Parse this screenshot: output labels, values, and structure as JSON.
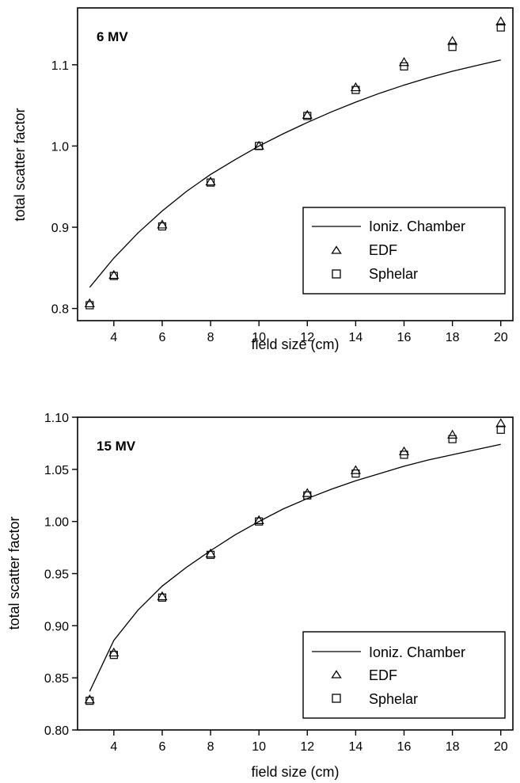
{
  "chart_data": [
    {
      "type": "scatter",
      "panel_label": "6 MV",
      "xlabel": "field size (cm)",
      "ylabel": "total scatter factor",
      "xlim": [
        2.5,
        20.5
      ],
      "ylim": [
        0.785,
        1.17
      ],
      "xticks": [
        4,
        6,
        8,
        10,
        12,
        14,
        16,
        18,
        20
      ],
      "xtick_labels": [
        "4",
        "6",
        "8",
        "10",
        "12",
        "14",
        "16",
        "18",
        "20"
      ],
      "yticks": [
        0.8,
        0.9,
        1.0,
        1.1
      ],
      "ytick_labels": [
        "0.8",
        "0.9",
        "1.0",
        "1.1"
      ],
      "grid": false,
      "legend_position": "lower-right",
      "series": [
        {
          "name": "Ioniz. Chamber",
          "marker": "line",
          "x": [
            3,
            4,
            5,
            6,
            7,
            8,
            9,
            10,
            11,
            12,
            13,
            14,
            15,
            16,
            17,
            18,
            19,
            20
          ],
          "y": [
            0.826,
            0.862,
            0.893,
            0.92,
            0.944,
            0.965,
            0.983,
            1.0,
            1.015,
            1.029,
            1.042,
            1.054,
            1.065,
            1.075,
            1.084,
            1.092,
            1.099,
            1.106
          ]
        },
        {
          "name": "EDF",
          "marker": "triangle",
          "x": [
            3,
            4,
            6,
            8,
            10,
            12,
            14,
            16,
            18,
            20
          ],
          "y": [
            0.806,
            0.841,
            0.903,
            0.956,
            1.0,
            1.038,
            1.072,
            1.103,
            1.129,
            1.153
          ]
        },
        {
          "name": "Sphelar",
          "marker": "square",
          "x": [
            3,
            4,
            6,
            8,
            10,
            12,
            14,
            16,
            18,
            20
          ],
          "y": [
            0.804,
            0.84,
            0.901,
            0.955,
            1.0,
            1.037,
            1.069,
            1.098,
            1.122,
            1.146
          ]
        }
      ]
    },
    {
      "type": "scatter",
      "panel_label": "15 MV",
      "xlabel": "field size (cm)",
      "ylabel": "total scatter factor",
      "xlim": [
        2.5,
        20.5
      ],
      "ylim": [
        0.8,
        1.1
      ],
      "xticks": [
        4,
        6,
        8,
        10,
        12,
        14,
        16,
        18,
        20
      ],
      "xtick_labels": [
        "4",
        "6",
        "8",
        "10",
        "12",
        "14",
        "16",
        "18",
        "20"
      ],
      "yticks": [
        0.8,
        0.85,
        0.9,
        0.95,
        1.0,
        1.05,
        1.1
      ],
      "ytick_labels": [
        "0.80",
        "0.85",
        "0.90",
        "0.95",
        "1.00",
        "1.05",
        "1.10"
      ],
      "grid": false,
      "legend_position": "lower-right",
      "series": [
        {
          "name": "Ioniz. Chamber",
          "marker": "line",
          "x": [
            3,
            4,
            5,
            6,
            7,
            8,
            9,
            10,
            11,
            12,
            13,
            14,
            15,
            16,
            17,
            18,
            19,
            20
          ],
          "y": [
            0.837,
            0.886,
            0.915,
            0.938,
            0.956,
            0.972,
            0.987,
            1.0,
            1.012,
            1.022,
            1.031,
            1.039,
            1.046,
            1.053,
            1.059,
            1.064,
            1.069,
            1.074
          ]
        },
        {
          "name": "EDF",
          "marker": "triangle",
          "x": [
            3,
            4,
            6,
            8,
            10,
            12,
            14,
            16,
            18,
            20
          ],
          "y": [
            0.829,
            0.874,
            0.928,
            0.969,
            1.001,
            1.027,
            1.049,
            1.067,
            1.083,
            1.094
          ]
        },
        {
          "name": "Sphelar",
          "marker": "square",
          "x": [
            3,
            4,
            6,
            8,
            10,
            12,
            14,
            16,
            18,
            20
          ],
          "y": [
            0.828,
            0.872,
            0.927,
            0.968,
            1.0,
            1.025,
            1.046,
            1.064,
            1.079,
            1.088
          ]
        }
      ]
    }
  ]
}
